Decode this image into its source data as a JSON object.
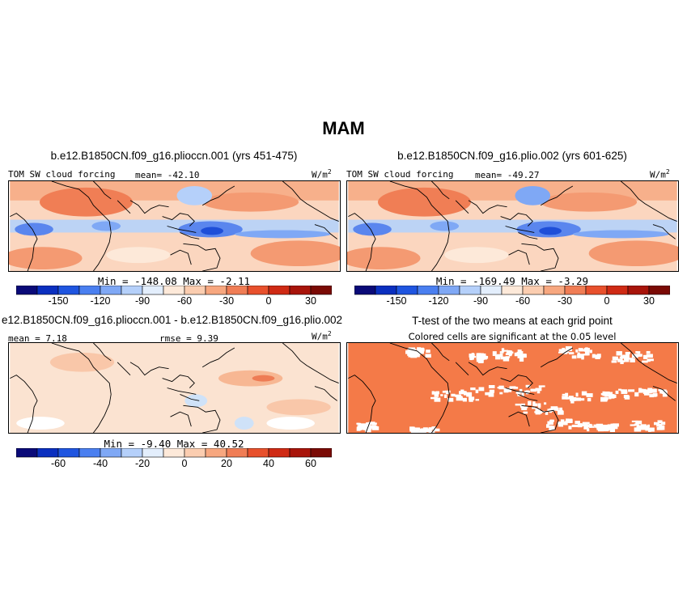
{
  "title": "MAM",
  "units": "W/m",
  "units_exp": "2",
  "panels": {
    "p1": {
      "title": "b.e12.B1850CN.f09_g16.plioccn.001 (yrs 451-475)",
      "variable": "TOM SW cloud forcing",
      "mean": "mean= -42.10",
      "minmax": "Min = -148.08 Max =  -2.11",
      "colorbar_ticks": [
        "-150",
        "-120",
        "-90",
        "-60",
        "-30",
        "0",
        "30"
      ]
    },
    "p2": {
      "title": "b.e12.B1850CN.f09_g16.plio.002 (yrs 601-625)",
      "variable": "TOM SW cloud forcing",
      "mean": "mean= -49.27",
      "minmax": "Min = -169.49 Max =  -3.29",
      "colorbar_ticks": [
        "-150",
        "-120",
        "-90",
        "-60",
        "-30",
        "0",
        "30"
      ]
    },
    "p3": {
      "title": "e12.B1850CN.f09_g16.plioccn.001 - b.e12.B1850CN.f09_g16.plio.002",
      "mean": "mean =  7.18",
      "rmse": "rmse =  9.39",
      "minmax": "Min =  -9.40 Max =  40.52",
      "colorbar_ticks": [
        "-60",
        "-40",
        "-20",
        "0",
        "20",
        "40",
        "60"
      ]
    },
    "p4": {
      "title": "T-test of the two means at each grid point",
      "subtitle": "Colored cells are significant at the 0.05 level"
    }
  },
  "colors": {
    "colorbar": [
      "#0a0a78",
      "#0a2fbf",
      "#1f55e0",
      "#4a7ff0",
      "#7fa8f5",
      "#b5d0fa",
      "#e3eefc",
      "#fde9d9",
      "#fbcdb0",
      "#f7a77f",
      "#f07d55",
      "#e8502c",
      "#cf2a14",
      "#a8140a",
      "#7a0a05"
    ],
    "significant": "#f47a48",
    "land_outline": "#000000"
  }
}
